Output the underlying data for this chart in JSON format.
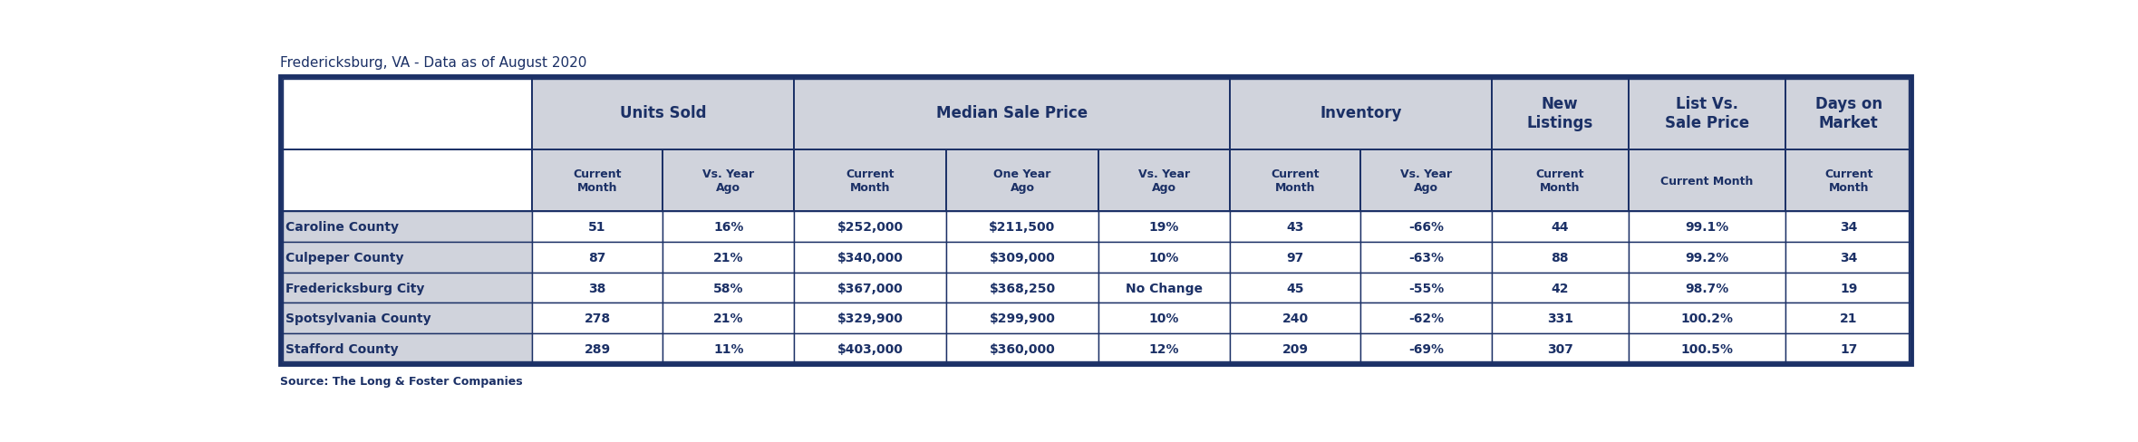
{
  "title": "Fredericksburg, VA - Data as of August 2020",
  "source": "Source: The Long & Foster Companies",
  "header_color": "#d0d3dc",
  "data_row_color": "#d0d3dc",
  "row_label_color": "#d0d3dc",
  "header_text_color": "#1b3066",
  "border_color": "#1b3066",
  "col_groups": [
    {
      "label": "Units Sold",
      "span": 2
    },
    {
      "label": "Median Sale Price",
      "span": 3
    },
    {
      "label": "Inventory",
      "span": 2
    },
    {
      "label": "New\nListings",
      "span": 1
    },
    {
      "label": "List Vs.\nSale Price",
      "span": 1
    },
    {
      "label": "Days on\nMarket",
      "span": 1
    }
  ],
  "sub_headers": [
    "Current\nMonth",
    "Vs. Year\nAgo",
    "Current\nMonth",
    "One Year\nAgo",
    "Vs. Year\nAgo",
    "Current\nMonth",
    "Vs. Year\nAgo",
    "Current\nMonth",
    "Current Month",
    "Current\nMonth"
  ],
  "row_labels": [
    "Caroline County",
    "Culpeper County",
    "Fredericksburg City",
    "Spotsylvania County",
    "Stafford County"
  ],
  "data": [
    [
      "51",
      "16%",
      "$252,000",
      "$211,500",
      "19%",
      "43",
      "-66%",
      "44",
      "99.1%",
      "34"
    ],
    [
      "87",
      "21%",
      "$340,000",
      "$309,000",
      "10%",
      "97",
      "-63%",
      "88",
      "99.2%",
      "34"
    ],
    [
      "38",
      "58%",
      "$367,000",
      "$368,250",
      "No Change",
      "45",
      "-55%",
      "42",
      "98.7%",
      "19"
    ],
    [
      "278",
      "21%",
      "$329,900",
      "$299,900",
      "10%",
      "240",
      "-62%",
      "331",
      "100.2%",
      "21"
    ],
    [
      "289",
      "11%",
      "$403,000",
      "$360,000",
      "12%",
      "209",
      "-69%",
      "307",
      "100.5%",
      "17"
    ]
  ],
  "col_widths": [
    2.4,
    1.25,
    1.25,
    1.45,
    1.45,
    1.25,
    1.25,
    1.25,
    1.3,
    1.5,
    1.2
  ],
  "title_fontsize": 11,
  "source_fontsize": 9,
  "group_header_fontsize": 12,
  "sub_header_fontsize": 9,
  "data_fontsize": 10,
  "row_label_fontsize": 10
}
